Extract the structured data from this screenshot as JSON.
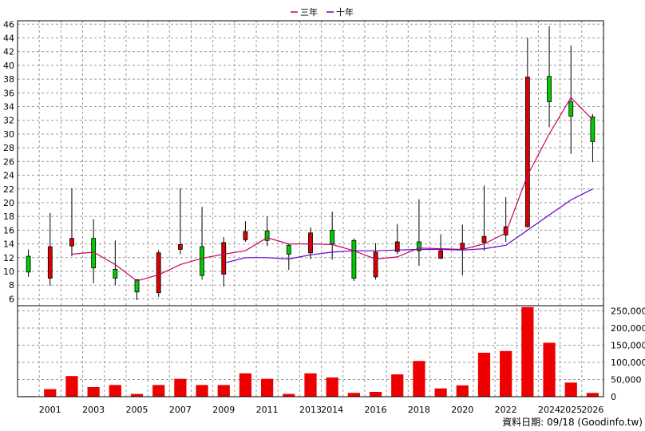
{
  "chart_data": {
    "type": "candlestick+bar",
    "legend": [
      {
        "name": "三年",
        "color": "#cc0066"
      },
      {
        "name": "十年",
        "color": "#6600cc"
      }
    ],
    "source_note": "資料日期: 09/18 (Goodinfo.tw)",
    "x_tick_labels": [
      "2001",
      "2003",
      "2005",
      "2007",
      "2009",
      "2011",
      "2013",
      "2014",
      "2016",
      "2018",
      "2020",
      "2022",
      "2024",
      "2025",
      "2026"
    ],
    "price_axis": {
      "min": 5,
      "max": 46.5,
      "ticks": [
        6,
        8,
        10,
        12,
        14,
        16,
        18,
        20,
        22,
        24,
        26,
        28,
        30,
        32,
        34,
        36,
        38,
        40,
        42,
        44,
        46
      ]
    },
    "volume_axis": {
      "min": 0,
      "max": 265000,
      "ticks": [
        0,
        50000,
        100000,
        150000,
        200000,
        250000
      ],
      "tick_labels": [
        "0",
        "50,000",
        "100,000",
        "150,000",
        "200,000",
        "250,000"
      ]
    },
    "periods": [
      {
        "open": 9.9,
        "high": 13.2,
        "low": 9.2,
        "close": 12.2,
        "volume": 1500
      },
      {
        "open": 13.6,
        "high": 18.5,
        "low": 7.9,
        "close": 9.0,
        "volume": 22000
      },
      {
        "open": 14.8,
        "high": 22.1,
        "low": 12.2,
        "close": 13.7,
        "volume": 60000
      },
      {
        "open": 10.5,
        "high": 17.6,
        "low": 8.3,
        "close": 14.8,
        "volume": 28000
      },
      {
        "open": 9.0,
        "high": 14.5,
        "low": 8.0,
        "close": 10.3,
        "volume": 34000
      },
      {
        "open": 7.0,
        "high": 8.6,
        "low": 5.8,
        "close": 8.8,
        "volume": 8000
      },
      {
        "open": 12.7,
        "high": 13.1,
        "low": 6.3,
        "close": 6.9,
        "volume": 34000
      },
      {
        "open": 13.9,
        "high": 22.1,
        "low": 12.5,
        "close": 13.2,
        "volume": 52000
      },
      {
        "open": 9.4,
        "high": 19.4,
        "low": 8.8,
        "close": 13.6,
        "volume": 34000
      },
      {
        "open": 14.2,
        "high": 15.0,
        "low": 7.8,
        "close": 9.6,
        "volume": 34000
      },
      {
        "open": 15.8,
        "high": 17.3,
        "low": 14.3,
        "close": 14.6,
        "volume": 68000
      },
      {
        "open": 14.5,
        "high": 18.0,
        "low": 13.7,
        "close": 15.9,
        "volume": 52000
      },
      {
        "open": 12.5,
        "high": 14.0,
        "low": 10.2,
        "close": 13.8,
        "volume": 8000
      },
      {
        "open": 15.6,
        "high": 16.4,
        "low": 11.8,
        "close": 12.7,
        "volume": 68000
      },
      {
        "open": 14.0,
        "high": 18.7,
        "low": 11.7,
        "close": 16.0,
        "volume": 56000
      },
      {
        "open": 9.0,
        "high": 14.8,
        "low": 8.6,
        "close": 14.5,
        "volume": 11000
      },
      {
        "open": 12.8,
        "high": 14.1,
        "low": 8.8,
        "close": 9.2,
        "volume": 14000
      },
      {
        "open": 14.3,
        "high": 16.9,
        "low": 12.5,
        "close": 12.9,
        "volume": 65000
      },
      {
        "open": 13.0,
        "high": 20.5,
        "low": 10.8,
        "close": 14.3,
        "volume": 104000
      },
      {
        "open": 13.0,
        "high": 15.4,
        "low": 11.8,
        "close": 11.9,
        "volume": 24000
      },
      {
        "open": 14.1,
        "high": 16.8,
        "low": 9.4,
        "close": 13.3,
        "volume": 33000
      },
      {
        "open": 15.1,
        "high": 22.5,
        "low": 13.0,
        "close": 14.2,
        "volume": 128000
      },
      {
        "open": 16.5,
        "high": 20.8,
        "low": 14.3,
        "close": 15.3,
        "volume": 133000
      },
      {
        "open": 38.3,
        "high": 44.0,
        "low": 16.4,
        "close": 16.5,
        "volume": 261000
      },
      {
        "open": 34.7,
        "high": 45.7,
        "low": 31.0,
        "close": 38.4,
        "volume": 157000
      },
      {
        "open": 32.6,
        "high": 42.9,
        "low": 27.1,
        "close": 34.7,
        "volume": 41000
      },
      {
        "open": 28.9,
        "high": 32.9,
        "low": 25.9,
        "close": 32.5,
        "volume": 11000
      }
    ],
    "series": [
      {
        "name": "三年",
        "color": "#cc0066",
        "start_index": 2,
        "values": [
          12.5,
          12.8,
          11.0,
          8.6,
          9.5,
          11.0,
          11.9,
          12.5,
          13.0,
          14.9,
          14.0,
          14.0,
          13.9,
          13.0,
          11.8,
          12.1,
          13.4,
          13.3,
          13.2,
          14.0,
          15.6,
          24.0,
          30.0,
          35.3,
          32.1
        ]
      },
      {
        "name": "十年",
        "color": "#6600cc",
        "start_index": 9,
        "values": [
          11.2,
          12.0,
          12.0,
          11.8,
          12.4,
          12.8,
          13.0,
          13.0,
          13.1,
          13.2,
          13.2,
          13.1,
          13.3,
          13.8,
          16.0,
          18.2,
          20.4,
          22.0
        ]
      }
    ]
  }
}
